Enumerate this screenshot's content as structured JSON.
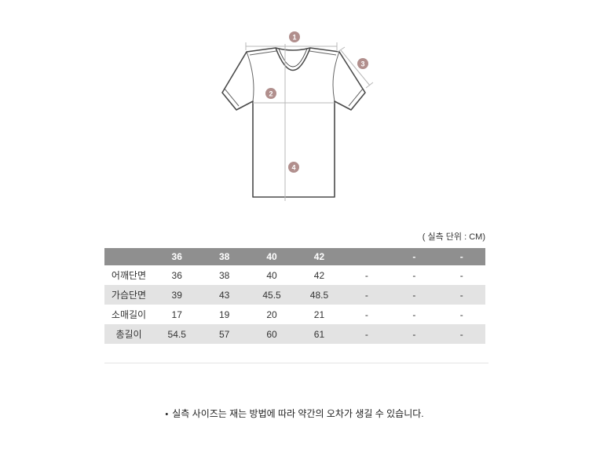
{
  "diagram": {
    "description": "t-shirt measurement guide",
    "marker_color": "#b18f8d",
    "outline_color": "#4a4a4a",
    "guide_color": "#b8b8b8",
    "markers": [
      {
        "num": "1",
        "meaning": "shoulder width"
      },
      {
        "num": "2",
        "meaning": "chest width"
      },
      {
        "num": "3",
        "meaning": "sleeve length"
      },
      {
        "num": "4",
        "meaning": "total length"
      }
    ]
  },
  "size_table": {
    "unit_note": "( 실측 단위 : CM)",
    "header": [
      "",
      "36",
      "38",
      "40",
      "42",
      "",
      "-",
      "-"
    ],
    "rows": [
      {
        "label": "어깨단면",
        "values": [
          "36",
          "38",
          "40",
          "42",
          "-",
          "-",
          "-"
        ]
      },
      {
        "label": "가슴단면",
        "values": [
          "39",
          "43",
          "45.5",
          "48.5",
          "-",
          "-",
          "-"
        ]
      },
      {
        "label": "소매길이",
        "values": [
          "17",
          "19",
          "20",
          "21",
          "-",
          "-",
          "-"
        ]
      },
      {
        "label": "총길이",
        "values": [
          "54.5",
          "57",
          "60",
          "61",
          "-",
          "-",
          "-"
        ]
      }
    ],
    "header_bg": "#8f8f8f",
    "zebra_bg": "#e3e3e3"
  },
  "footnote": {
    "bullet": "•",
    "text": "실측 사이즈는 재는 방법에 따라 약간의 오차가 생길 수 있습니다."
  }
}
